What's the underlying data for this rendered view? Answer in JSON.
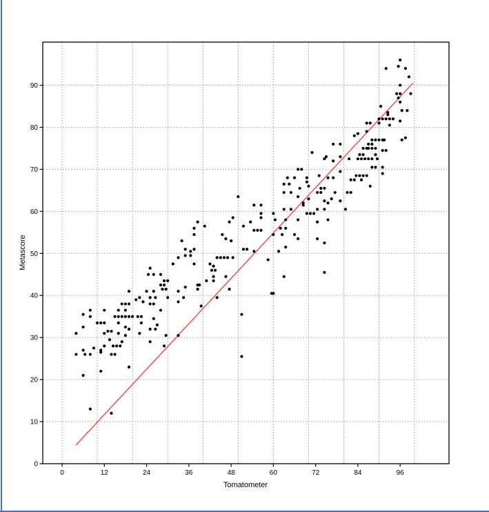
{
  "window": {
    "background": "#ffffff",
    "border_color": "#4472c4"
  },
  "chart_data": {
    "type": "scatter",
    "title": "",
    "xlabel": "Tomatometer",
    "ylabel": "Metascore",
    "legend": "none",
    "grid": "dotted",
    "grid_color": "#999999",
    "frame_color": "#000000",
    "point_color": "#000000",
    "point_radius": 2.1,
    "xlim": [
      -5.5,
      109.9
    ],
    "ylim": [
      0,
      100.3
    ],
    "x_ticks": [
      0,
      12,
      24,
      36,
      48,
      60,
      72,
      84,
      96
    ],
    "y_ticks": [
      0,
      10,
      20,
      30,
      40,
      50,
      60,
      70,
      80,
      90
    ],
    "x_gridlines": [
      0,
      10,
      20,
      30,
      40,
      50,
      60,
      70,
      80,
      90,
      100
    ],
    "y_gridlines": [
      10,
      20,
      30,
      40,
      50,
      60,
      70,
      80,
      90
    ],
    "trendline": {
      "color": "#ff3333",
      "x_start": 3.9,
      "y_start": 4.4,
      "x_end": 99.6,
      "y_end": 90.5
    },
    "points": [
      [
        4,
        26
      ],
      [
        4,
        31
      ],
      [
        6,
        21
      ],
      [
        6,
        27
      ],
      [
        6,
        32.5
      ],
      [
        6,
        35.5
      ],
      [
        6.5,
        26
      ],
      [
        8,
        13
      ],
      [
        8,
        26
      ],
      [
        8,
        35
      ],
      [
        8,
        36.5
      ],
      [
        9,
        27.5
      ],
      [
        10,
        33.5
      ],
      [
        11,
        22
      ],
      [
        11,
        27
      ],
      [
        11,
        33.5
      ],
      [
        11,
        26.5
      ],
      [
        12,
        28
      ],
      [
        12,
        31
      ],
      [
        12,
        33.5
      ],
      [
        12,
        36.5
      ],
      [
        13,
        31.5
      ],
      [
        13.5,
        29.5
      ],
      [
        14,
        12
      ],
      [
        14,
        26
      ],
      [
        14,
        31.5
      ],
      [
        14.5,
        28
      ],
      [
        15,
        26
      ],
      [
        15,
        35
      ],
      [
        15.5,
        28
      ],
      [
        16,
        31
      ],
      [
        16,
        33.5
      ],
      [
        16,
        35
      ],
      [
        16,
        36.5
      ],
      [
        16.5,
        28
      ],
      [
        17,
        29
      ],
      [
        17,
        35
      ],
      [
        17,
        38
      ],
      [
        18,
        30.5
      ],
      [
        18,
        32.5
      ],
      [
        18,
        35
      ],
      [
        18,
        36.5
      ],
      [
        18,
        38
      ],
      [
        19,
        23
      ],
      [
        19,
        32
      ],
      [
        19,
        35
      ],
      [
        19,
        38
      ],
      [
        19,
        41
      ],
      [
        20,
        35
      ],
      [
        21,
        39
      ],
      [
        21.5,
        35
      ],
      [
        22,
        31
      ],
      [
        22,
        39.5
      ],
      [
        22.5,
        33.5
      ],
      [
        22.5,
        35
      ],
      [
        23,
        38.5
      ],
      [
        25,
        29
      ],
      [
        25,
        32
      ],
      [
        25,
        38
      ],
      [
        25,
        39.5
      ],
      [
        26,
        34.5
      ],
      [
        26,
        38
      ],
      [
        26,
        41
      ],
      [
        26.5,
        32
      ],
      [
        26.5,
        39.5
      ],
      [
        27,
        33
      ],
      [
        28,
        36.5
      ],
      [
        28.5,
        41.5
      ],
      [
        29,
        28
      ],
      [
        29.5,
        30.5
      ],
      [
        29.5,
        41.5
      ],
      [
        30,
        39.5
      ],
      [
        33,
        30.5
      ],
      [
        33,
        38.5
      ],
      [
        33,
        41
      ],
      [
        34.5,
        39.5
      ],
      [
        24,
        41
      ],
      [
        24.5,
        45
      ],
      [
        25,
        46.5
      ],
      [
        26,
        45
      ],
      [
        28,
        42.5
      ],
      [
        28,
        45
      ],
      [
        29,
        42.5
      ],
      [
        29,
        43.5
      ],
      [
        30,
        43.5
      ],
      [
        31.5,
        47.5
      ],
      [
        33,
        49
      ],
      [
        34,
        53
      ],
      [
        35,
        42
      ],
      [
        35,
        49.5
      ],
      [
        35,
        51
      ],
      [
        36.5,
        49.5
      ],
      [
        36.5,
        50.5
      ],
      [
        37.5,
        47.5
      ],
      [
        37.5,
        51
      ],
      [
        38.5,
        42.5
      ],
      [
        38.5,
        41.5
      ],
      [
        39,
        42.5
      ],
      [
        39.5,
        37.5
      ],
      [
        41,
        43.5
      ],
      [
        42,
        47.5
      ],
      [
        42.5,
        46
      ],
      [
        43,
        43.5
      ],
      [
        43,
        44.5
      ],
      [
        43,
        47
      ],
      [
        43.5,
        46
      ],
      [
        44,
        39.5
      ],
      [
        44,
        49
      ],
      [
        45,
        49
      ],
      [
        46,
        49
      ],
      [
        46.5,
        44.5
      ],
      [
        47,
        49
      ],
      [
        47.5,
        41.5
      ],
      [
        48.5,
        49
      ],
      [
        51,
        25.5
      ],
      [
        51,
        35.5
      ],
      [
        51.5,
        51
      ],
      [
        52.5,
        51
      ],
      [
        54.5,
        50.5
      ],
      [
        60,
        40.5
      ],
      [
        37.5,
        54.5
      ],
      [
        37.5,
        56
      ],
      [
        38.5,
        57.5
      ],
      [
        40.5,
        56.5
      ],
      [
        45.5,
        54.5
      ],
      [
        46.5,
        53.5
      ],
      [
        47.5,
        57.5
      ],
      [
        48,
        53
      ],
      [
        48.5,
        58.5
      ],
      [
        50,
        63.5
      ],
      [
        51.5,
        56.5
      ],
      [
        53.5,
        57.5
      ],
      [
        54.5,
        55.5
      ],
      [
        54.5,
        61.5
      ],
      [
        55.5,
        55.5
      ],
      [
        56.5,
        55.5
      ],
      [
        56.5,
        58.5
      ],
      [
        56.5,
        59.5
      ],
      [
        56.5,
        61.5
      ],
      [
        58.5,
        48.5
      ],
      [
        59.5,
        40.5
      ],
      [
        60,
        54.5
      ],
      [
        60,
        59.5
      ],
      [
        60.5,
        58
      ],
      [
        61.5,
        50.5
      ],
      [
        62,
        56
      ],
      [
        62.5,
        54.5
      ],
      [
        63,
        44.5
      ],
      [
        63,
        60.5
      ],
      [
        63,
        64.5
      ],
      [
        63,
        66.5
      ],
      [
        63.5,
        51.5
      ],
      [
        63.5,
        56
      ],
      [
        63.5,
        58
      ],
      [
        64,
        68
      ],
      [
        64.5,
        66.5
      ],
      [
        65,
        60.5
      ],
      [
        65,
        64.5
      ],
      [
        66,
        54.5
      ],
      [
        66,
        68
      ],
      [
        67,
        53.5
      ],
      [
        67,
        58
      ],
      [
        67,
        63.5
      ],
      [
        67,
        70
      ],
      [
        67.5,
        65.5
      ],
      [
        68,
        70
      ],
      [
        68.5,
        61.5
      ],
      [
        68.5,
        62
      ],
      [
        69.5,
        59.5
      ],
      [
        69.5,
        67
      ],
      [
        69.5,
        68
      ],
      [
        70,
        63
      ],
      [
        70,
        66
      ],
      [
        70.5,
        59.5
      ],
      [
        71,
        74
      ],
      [
        71.5,
        59.5
      ],
      [
        72.5,
        53.5
      ],
      [
        72.5,
        57.5
      ],
      [
        72.5,
        60.5
      ],
      [
        72.5,
        64.5
      ],
      [
        73,
        68.5
      ],
      [
        73.5,
        64.5
      ],
      [
        73.5,
        65.5
      ],
      [
        74.5,
        45.5
      ],
      [
        74.5,
        52.5
      ],
      [
        74.5,
        60.5
      ],
      [
        74.5,
        62.5
      ],
      [
        74.5,
        65.5
      ],
      [
        74.5,
        72.5
      ],
      [
        75,
        73
      ],
      [
        75.5,
        58
      ],
      [
        75.5,
        62
      ],
      [
        75.5,
        68
      ],
      [
        76.5,
        63
      ],
      [
        77,
        68
      ],
      [
        77,
        72
      ],
      [
        77,
        76
      ],
      [
        77.5,
        64.5
      ],
      [
        79,
        62.5
      ],
      [
        79,
        69.5
      ],
      [
        79,
        73
      ],
      [
        79,
        76
      ],
      [
        80.5,
        60.5
      ],
      [
        81,
        64.5
      ],
      [
        82,
        64.5
      ],
      [
        81.5,
        72.5
      ],
      [
        84,
        72.5
      ],
      [
        85,
        72.5
      ],
      [
        86,
        72.5
      ],
      [
        87,
        72.5
      ],
      [
        88,
        72.5
      ],
      [
        89.5,
        72.5
      ],
      [
        88,
        70.5
      ],
      [
        89,
        70.5
      ],
      [
        91,
        70.5
      ],
      [
        91,
        69
      ],
      [
        82,
        67.5
      ],
      [
        83,
        67.5
      ],
      [
        85,
        67.5
      ],
      [
        83.5,
        68.5
      ],
      [
        84.5,
        68.5
      ],
      [
        85.5,
        68.5
      ],
      [
        86.5,
        68.5
      ],
      [
        87.5,
        66
      ],
      [
        83,
        78
      ],
      [
        84,
        78.5
      ],
      [
        86.5,
        79
      ],
      [
        86.5,
        81
      ],
      [
        87.5,
        81
      ],
      [
        84.5,
        73.5
      ],
      [
        85.5,
        73.5
      ],
      [
        85.5,
        75
      ],
      [
        86.5,
        75
      ],
      [
        87,
        75
      ],
      [
        87,
        76
      ],
      [
        88,
        75
      ],
      [
        88,
        76
      ],
      [
        88,
        77
      ],
      [
        89,
        73.5
      ],
      [
        89,
        75
      ],
      [
        89,
        77
      ],
      [
        90,
        77
      ],
      [
        90,
        81
      ],
      [
        90,
        82
      ],
      [
        90.5,
        85
      ],
      [
        91,
        77
      ],
      [
        91,
        82
      ],
      [
        91.5,
        77
      ],
      [
        91,
        74.5
      ],
      [
        92,
        74.5
      ],
      [
        92,
        82
      ],
      [
        92,
        94
      ],
      [
        92.5,
        83
      ],
      [
        92.5,
        83.5
      ],
      [
        93,
        80.5
      ],
      [
        93,
        82
      ],
      [
        94,
        82
      ],
      [
        95,
        88
      ],
      [
        95.5,
        87
      ],
      [
        95.5,
        94.5
      ],
      [
        96,
        81.5
      ],
      [
        96,
        86
      ],
      [
        96,
        88
      ],
      [
        96,
        90
      ],
      [
        96,
        96
      ],
      [
        96.5,
        77
      ],
      [
        96.5,
        84
      ],
      [
        97.5,
        77.5
      ],
      [
        97.5,
        94
      ],
      [
        98,
        84
      ],
      [
        98.5,
        92
      ],
      [
        99,
        88
      ]
    ]
  }
}
